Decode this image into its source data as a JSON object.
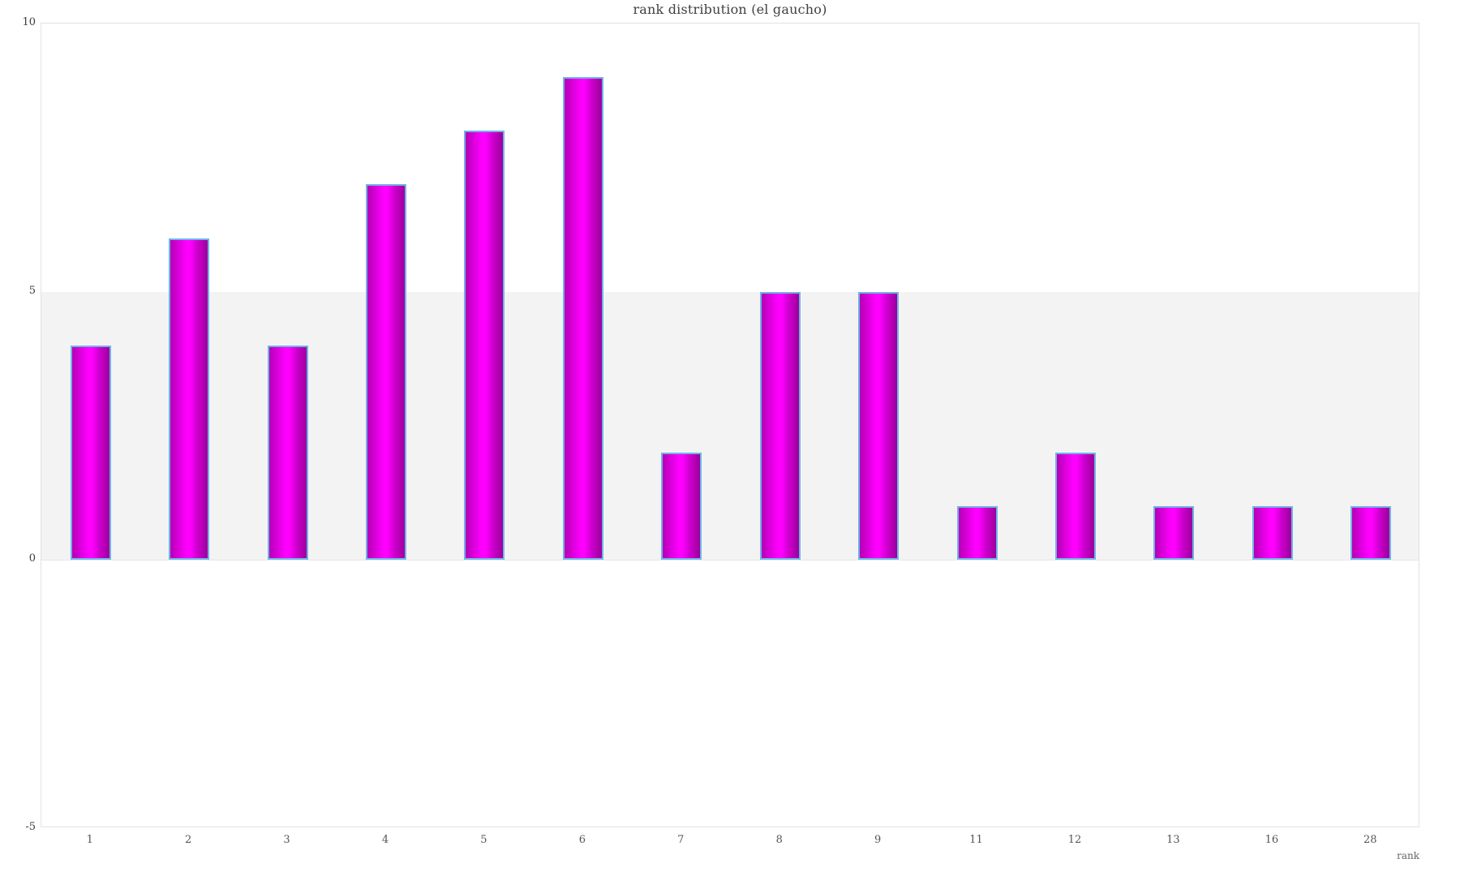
{
  "title": "rank distribution (el gaucho)",
  "chart_data": {
    "type": "bar",
    "title": "rank distribution (el gaucho)",
    "categories": [
      "1",
      "2",
      "3",
      "4",
      "5",
      "6",
      "7",
      "8",
      "9",
      "11",
      "12",
      "13",
      "16",
      "28"
    ],
    "values": [
      4,
      6,
      4,
      7,
      8,
      9,
      2,
      5,
      5,
      1,
      2,
      1,
      1,
      1
    ],
    "xlabel": "rank",
    "ylabel": "",
    "ylim": [
      -5,
      10
    ],
    "y_ticks": [
      10,
      5,
      0,
      -5
    ],
    "band": {
      "from": 0,
      "to": 5,
      "color": "#f3f3f3"
    },
    "grid": "horizontal-band-only",
    "legend": "none",
    "bar_fill_gradient": [
      "#b400b4",
      "#ff00ff",
      "#9b009b"
    ],
    "bar_border_color": "#70b3e7",
    "background_color": "#ffffff",
    "plot_border_color": "#e2e2e2"
  }
}
